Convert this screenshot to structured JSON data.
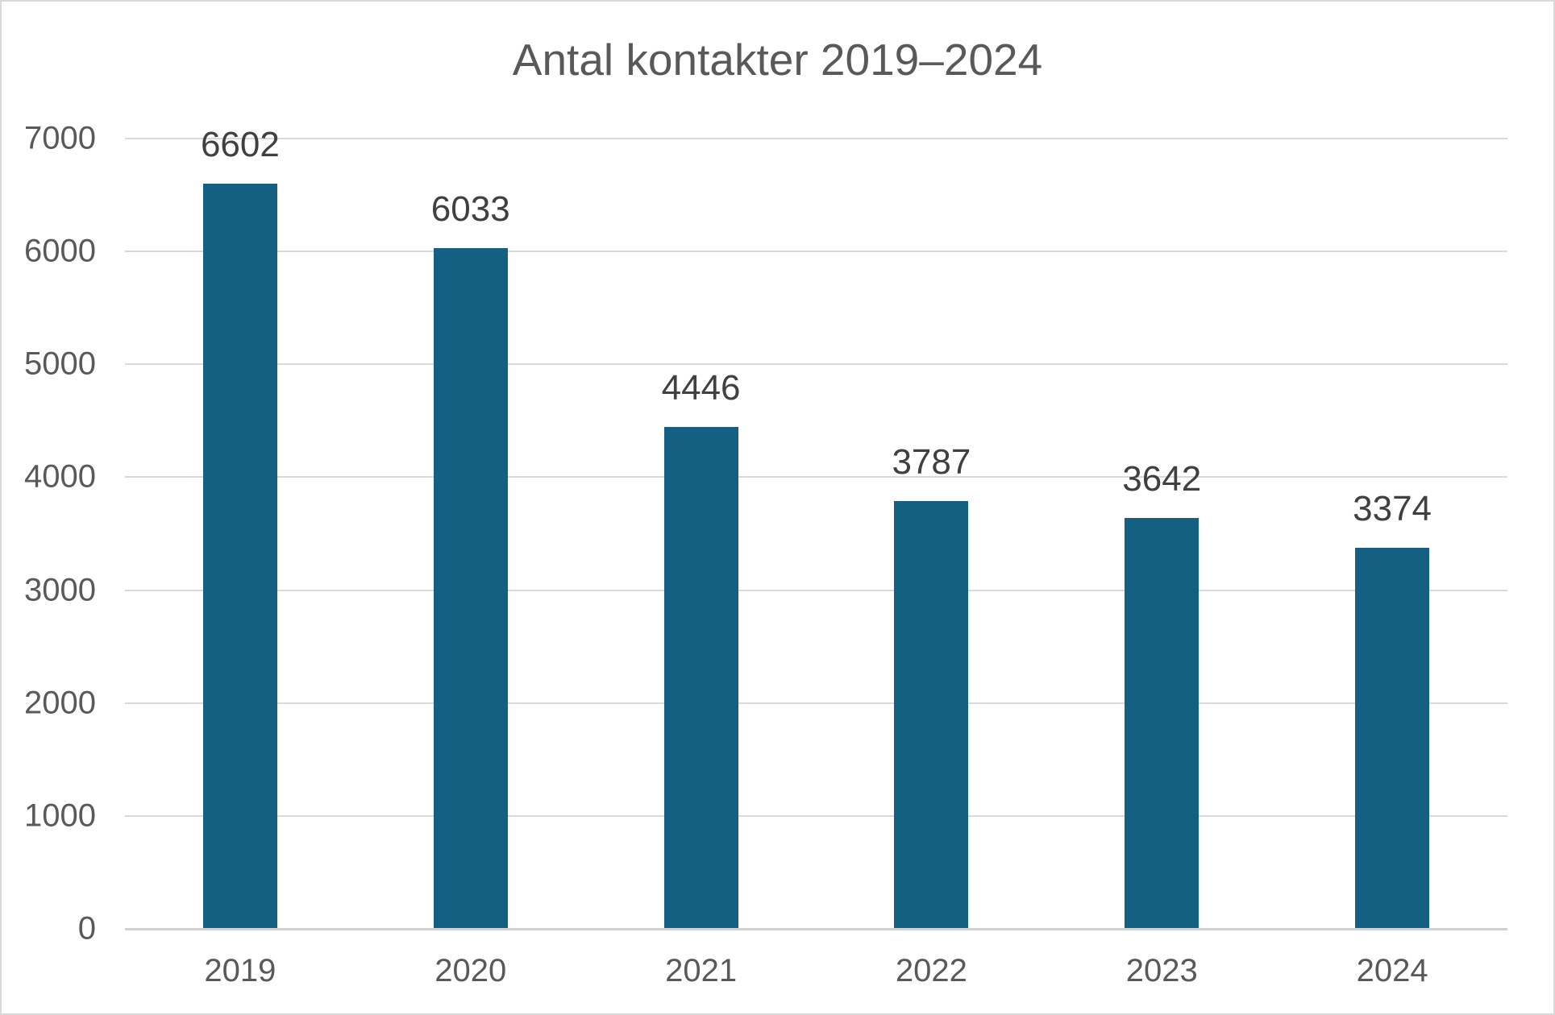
{
  "chart_data": {
    "type": "bar",
    "title": "Antal kontakter 2019–2024",
    "categories": [
      "2019",
      "2020",
      "2021",
      "2022",
      "2023",
      "2024"
    ],
    "values": [
      6602,
      6033,
      4446,
      3787,
      3642,
      3374
    ],
    "data_labels": [
      "6602",
      "6033",
      "4446",
      "3787",
      "3642",
      "3374"
    ],
    "xlabel": "",
    "ylabel": "",
    "ylim": [
      0,
      7000
    ],
    "ytick_interval": 1000,
    "ytick_labels": [
      "0",
      "1000",
      "2000",
      "3000",
      "4000",
      "5000",
      "6000",
      "7000"
    ],
    "grid": true,
    "legend": false,
    "colors": {
      "bar": "#156082",
      "gridline": "#d9d9d9",
      "axis_line": "#d0d0d0",
      "title_text": "#595959",
      "tick_text": "#595959",
      "data_label_text": "#404040",
      "background": "#ffffff",
      "frame_border": "#d9d9d9"
    }
  }
}
